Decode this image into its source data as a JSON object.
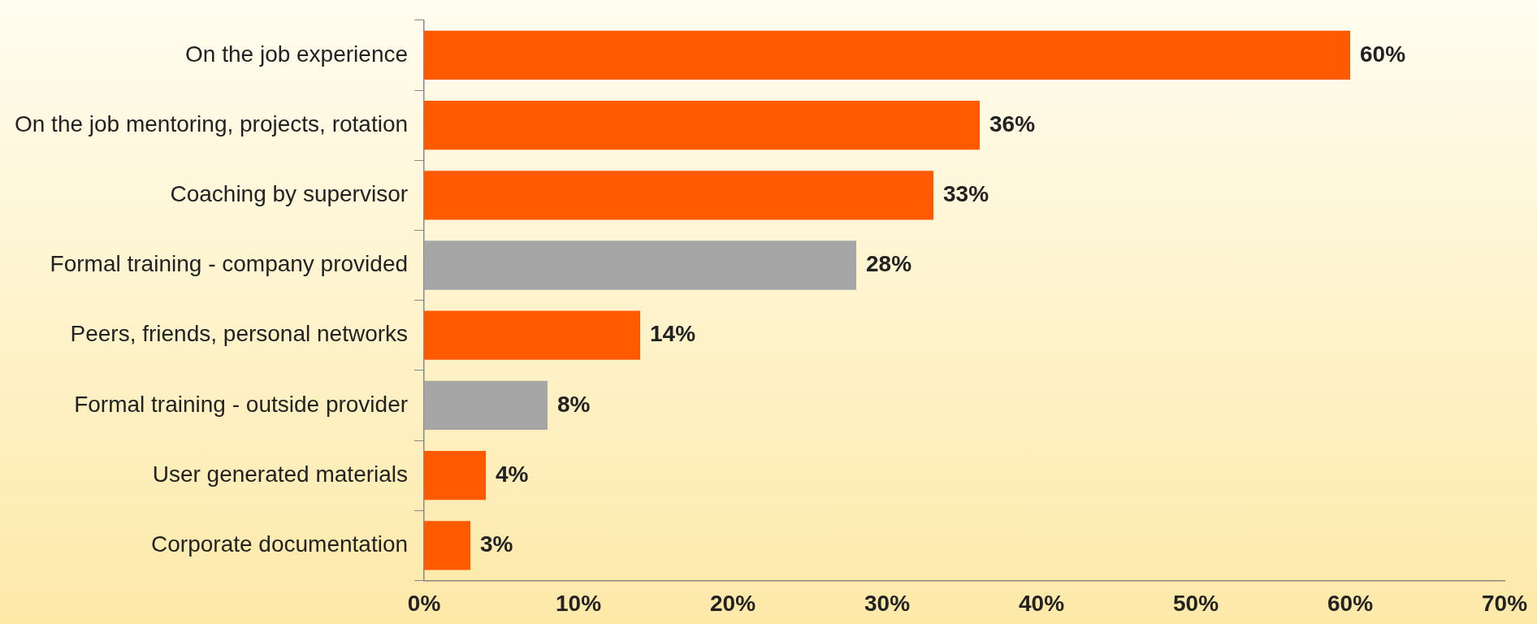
{
  "chart_data": {
    "type": "bar",
    "orientation": "horizontal",
    "categories": [
      "On the job experience",
      "On the job mentoring, projects, rotation",
      "Coaching by supervisor",
      "Formal training - company provided",
      "Peers, friends, personal networks",
      "Formal training - outside provider",
      "User generated materials",
      "Corporate documentation"
    ],
    "values": [
      60,
      36,
      33,
      28,
      14,
      8,
      4,
      3
    ],
    "colors": [
      "#ff5a00",
      "#ff5a00",
      "#ff5a00",
      "#a6a6a6",
      "#ff5a00",
      "#a6a6a6",
      "#ff5a00",
      "#ff5a00"
    ],
    "value_labels": [
      "60%",
      "36%",
      "33%",
      "28%",
      "14%",
      "8%",
      "4%",
      "3%"
    ],
    "xlim": [
      0,
      70
    ],
    "xticks": [
      {
        "value": 0,
        "label": "0%"
      },
      {
        "value": 10,
        "label": "10%"
      },
      {
        "value": 20,
        "label": "20%"
      },
      {
        "value": 30,
        "label": "30%"
      },
      {
        "value": 40,
        "label": "40%"
      },
      {
        "value": 50,
        "label": "50%"
      },
      {
        "value": 60,
        "label": "60%"
      },
      {
        "value": 70,
        "label": "70%"
      }
    ],
    "grid": false,
    "legend": false
  }
}
